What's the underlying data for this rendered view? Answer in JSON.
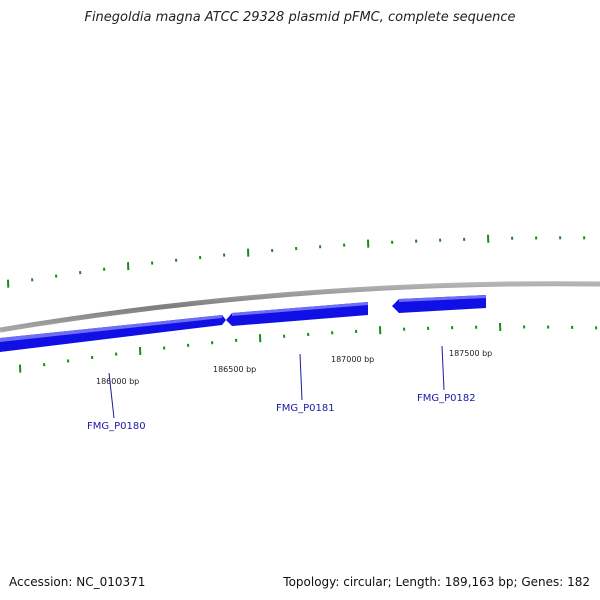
{
  "title": "Finegoldia magna ATCC 29328 plasmid pFMC, complete sequence",
  "footer": {
    "accession": "Accession: NC_010371",
    "summary": "Topology: circular; Length: 189,163 bp; Genes: 182"
  },
  "scale_labels": [
    "186000 bp",
    "186500 bp",
    "187000 bp",
    "187500 bp"
  ],
  "genes": [
    {
      "name": "FMG_P0180",
      "strand": "forward"
    },
    {
      "name": "FMG_P0181",
      "strand": "reverse"
    },
    {
      "name": "FMG_P0182",
      "strand": "reverse"
    }
  ],
  "colors": {
    "backbone": "#8a8a8a",
    "gene": "#1010e6",
    "gene_highlight": "#6e6ef5",
    "tick": "#1a8a1a",
    "label_line": "#1a1aa6"
  }
}
